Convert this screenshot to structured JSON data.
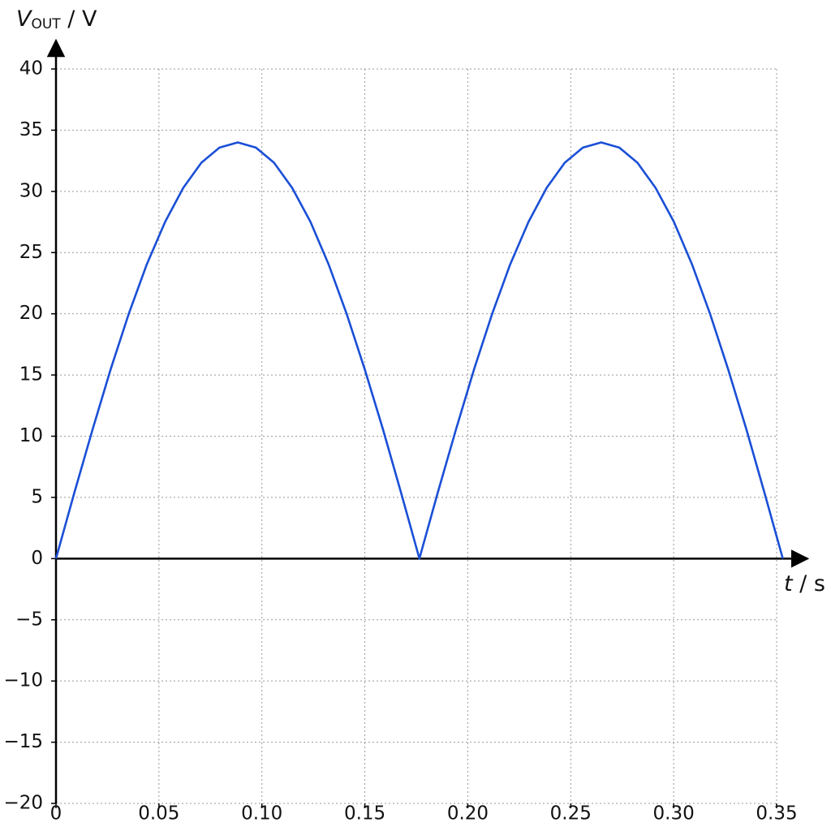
{
  "chart_data": {
    "type": "line",
    "ylabel_parts": [
      "V",
      "OUT",
      " / V"
    ],
    "xlabel_parts": [
      "t",
      " / s"
    ],
    "x": [
      0,
      0.0088,
      0.0177,
      0.0265,
      0.0353,
      0.0441,
      0.053,
      0.0618,
      0.0706,
      0.0794,
      0.0883,
      0.0971,
      0.1059,
      0.1147,
      0.1236,
      0.1324,
      0.1412,
      0.15,
      0.1589,
      0.1677,
      0.1765,
      0.1853,
      0.1942,
      0.203,
      0.2118,
      0.2206,
      0.2295,
      0.2383,
      0.2471,
      0.2559,
      0.2648,
      0.2736,
      0.2824,
      0.2912,
      0.3001,
      0.3089,
      0.3177,
      0.3265,
      0.3354,
      0.3442,
      0.353
    ],
    "series": [
      {
        "color": "#1a4fd6",
        "values": [
          0,
          5.32,
          10.51,
          15.44,
          19.98,
          24.04,
          27.51,
          30.29,
          32.34,
          33.58,
          34,
          33.58,
          32.34,
          30.29,
          27.51,
          24.04,
          19.98,
          15.44,
          10.51,
          5.32,
          0,
          5.32,
          10.51,
          15.44,
          19.98,
          24.04,
          27.51,
          30.29,
          32.34,
          33.58,
          34,
          33.58,
          32.34,
          30.29,
          27.51,
          24.04,
          19.98,
          15.44,
          10.51,
          5.32,
          0
        ]
      }
    ],
    "xlim": [
      0,
      0.35
    ],
    "ylim": [
      -20,
      40
    ],
    "xticks": [
      0,
      0.05,
      {
        "value": 0.1,
        "label": "0.10"
      },
      0.15,
      {
        "value": 0.2,
        "label": "0.20"
      },
      0.25,
      {
        "value": 0.3,
        "label": "0.30"
      },
      0.35
    ],
    "yticks": [
      {
        "value": -20,
        "label": "−20"
      },
      {
        "value": -15,
        "label": "−15"
      },
      {
        "value": -10,
        "label": "−10"
      },
      {
        "value": -5,
        "label": "−5"
      },
      0,
      5,
      10,
      15,
      20,
      25,
      30,
      35,
      40
    ],
    "grid": true
  }
}
